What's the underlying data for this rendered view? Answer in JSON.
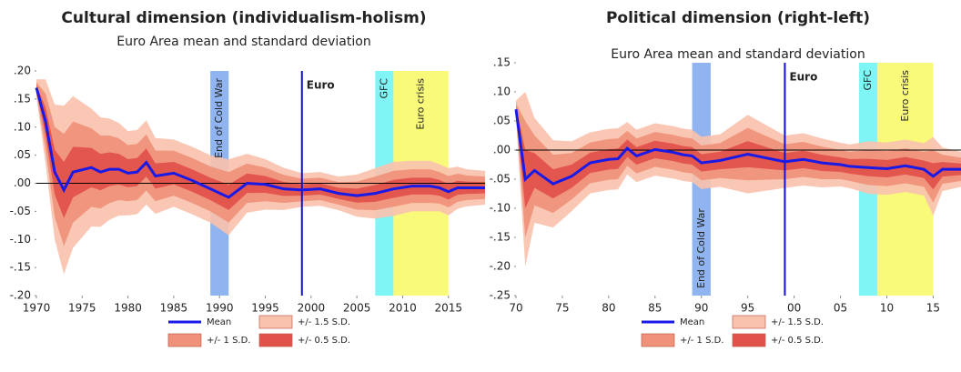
{
  "chart_data": [
    {
      "type": "band-line",
      "title": "Cultural dimension (individualism-holism)",
      "subtitle": "Euro Area mean and standard deviation",
      "x": [
        1970,
        1971,
        1972,
        1973,
        1974,
        1976,
        1977,
        1978,
        1979,
        1980,
        1981,
        1982,
        1983,
        1985,
        1987,
        1989,
        1991,
        1993,
        1995,
        1997,
        1999,
        2001,
        2003,
        2005,
        2007,
        2009,
        2011,
        2013,
        2014,
        2015,
        2016,
        2017,
        2019
      ],
      "mean": {
        "name": "Mean",
        "color": "#1a1ae6",
        "values": [
          0.17,
          0.11,
          0.02,
          -0.012,
          0.02,
          0.028,
          0.02,
          0.025,
          0.025,
          0.018,
          0.02,
          0.037,
          0.013,
          0.018,
          0.005,
          -0.01,
          -0.025,
          0,
          -0.002,
          -0.01,
          -0.012,
          -0.01,
          -0.018,
          -0.022,
          -0.018,
          -0.01,
          -0.005,
          -0.005,
          -0.008,
          -0.015,
          -0.008,
          -0.008,
          -0.008
        ]
      },
      "sd": [
        0.01,
        0.05,
        0.08,
        0.1,
        0.09,
        0.07,
        0.065,
        0.06,
        0.055,
        0.05,
        0.05,
        0.05,
        0.045,
        0.04,
        0.04,
        0.04,
        0.045,
        0.035,
        0.03,
        0.025,
        0.02,
        0.02,
        0.02,
        0.025,
        0.03,
        0.032,
        0.03,
        0.03,
        0.028,
        0.028,
        0.025,
        0.022,
        0.02
      ],
      "bands": [
        {
          "name": "+/- 1.5 S.D.",
          "multiple": 1.5,
          "color": "#f8c2ae"
        },
        {
          "name": "+/- 1 S.D.",
          "multiple": 1,
          "color": "#f0917a"
        },
        {
          "name": "+/- 0.5 S.D.",
          "multiple": 0.5,
          "color": "#e2504a"
        }
      ],
      "shaded": [
        {
          "label": "End of Cold War",
          "x0": 1989,
          "x1": 1991,
          "color": "#8fb4f0"
        },
        {
          "label": "GFC",
          "x0": 2007,
          "x1": 2009,
          "color": "#7ff5f5"
        },
        {
          "label": "Euro crisis",
          "x0": 2009,
          "x1": 2015,
          "color": "#fafa7a"
        }
      ],
      "vlines": [
        {
          "label": "Euro",
          "x": 1999,
          "color": "#1010d0"
        }
      ],
      "xlim": [
        1970,
        2019
      ],
      "xticks": [
        1970,
        1975,
        1980,
        1985,
        1990,
        1995,
        2000,
        2005,
        2010,
        2015
      ],
      "ylim": [
        -0.2,
        0.2
      ],
      "yticks": [
        {
          "value": 0.2,
          "label": ".20"
        },
        {
          "value": 0.15,
          "label": ".15"
        },
        {
          "value": 0.1,
          "label": ".10"
        },
        {
          "value": 0.05,
          "label": ".05"
        },
        {
          "value": 0,
          "label": ".00"
        },
        {
          "value": -0.05,
          "label": "-.05"
        },
        {
          "value": -0.1,
          "label": "-.10"
        },
        {
          "value": -0.15,
          "label": "-.15"
        },
        {
          "value": -0.2,
          "label": "-.20"
        }
      ]
    },
    {
      "type": "band-line",
      "title": "Political dimension (right-left)",
      "subtitle": "Euro Area mean and standard deviation",
      "x": [
        1970,
        1971,
        1972,
        1974,
        1976,
        1978,
        1980,
        1981,
        1982,
        1983,
        1985,
        1987,
        1988,
        1989,
        1990,
        1992,
        1995,
        1999,
        2001,
        2003,
        2005,
        2006,
        2008,
        2010,
        2012,
        2014,
        2015,
        2016,
        2018
      ],
      "mean": {
        "name": "Mean",
        "color": "#1a1ae6",
        "values": [
          0.07,
          -0.05,
          -0.035,
          -0.058,
          -0.045,
          -0.022,
          -0.016,
          -0.015,
          0.003,
          -0.01,
          0.001,
          -0.004,
          -0.008,
          -0.01,
          -0.022,
          -0.018,
          -0.007,
          -0.02,
          -0.016,
          -0.022,
          -0.025,
          -0.028,
          -0.03,
          -0.032,
          -0.027,
          -0.033,
          -0.045,
          -0.033,
          -0.033
        ]
      },
      "sd": [
        0.01,
        0.1,
        0.06,
        0.05,
        0.04,
        0.035,
        0.035,
        0.035,
        0.03,
        0.03,
        0.03,
        0.03,
        0.03,
        0.03,
        0.03,
        0.03,
        0.045,
        0.03,
        0.03,
        0.028,
        0.025,
        0.025,
        0.03,
        0.03,
        0.03,
        0.03,
        0.045,
        0.025,
        0.02
      ],
      "bands": [
        {
          "name": "+/- 1.5 S.D.",
          "multiple": 1.5,
          "color": "#f8c2ae"
        },
        {
          "name": "+/- 1 S.D.",
          "multiple": 1,
          "color": "#f0917a"
        },
        {
          "name": "+/- 0.5 S.D.",
          "multiple": 0.5,
          "color": "#e2504a"
        }
      ],
      "shaded": [
        {
          "label": "End of Cold War",
          "x0": 1989,
          "x1": 1991,
          "color": "#8fb4f0"
        },
        {
          "label": "GFC",
          "x0": 2007,
          "x1": 2009,
          "color": "#7ff5f5"
        },
        {
          "label": "Euro crisis",
          "x0": 2009,
          "x1": 2015,
          "color": "#fafa7a"
        }
      ],
      "vlines": [
        {
          "label": "Euro",
          "x": 1999,
          "color": "#1010d0"
        }
      ],
      "xlim": [
        1970,
        2018
      ],
      "xticks": [
        {
          "value": 1970,
          "label": "70"
        },
        {
          "value": 1975,
          "label": "75"
        },
        {
          "value": 1980,
          "label": "80"
        },
        {
          "value": 1985,
          "label": "85"
        },
        {
          "value": 1990,
          "label": "90"
        },
        {
          "value": 1995,
          "label": "95"
        },
        {
          "value": 2000,
          "label": "00"
        },
        {
          "value": 2005,
          "label": "05"
        },
        {
          "value": 2010,
          "label": "10"
        },
        {
          "value": 2015,
          "label": "15"
        }
      ],
      "ylim": [
        -0.25,
        0.15
      ],
      "yticks": [
        {
          "value": 0.15,
          "label": ".15"
        },
        {
          "value": 0.1,
          "label": ".10"
        },
        {
          "value": 0.05,
          "label": ".05"
        },
        {
          "value": 0,
          "label": ".00"
        },
        {
          "value": -0.05,
          "label": "-.05"
        },
        {
          "value": -0.1,
          "label": "-.10"
        },
        {
          "value": -0.15,
          "label": "-.15"
        },
        {
          "value": -0.2,
          "label": "-.20"
        },
        {
          "value": -0.25,
          "label": "-.25"
        }
      ]
    }
  ]
}
